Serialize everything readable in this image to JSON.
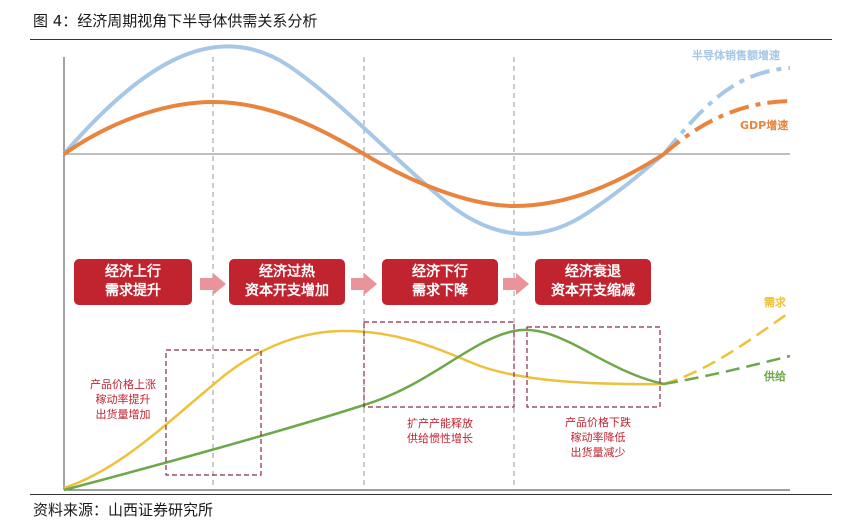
{
  "figure": {
    "title": "图 4：经济周期视角下半导体供需关系分析",
    "source": "资料来源：山西证券研究所"
  },
  "series_labels": {
    "semi_sales": "半导体销售额增速",
    "gdp": "GDP增速",
    "demand": "需求",
    "supply": "供给"
  },
  "stages": [
    {
      "line1": "经济上行",
      "line2": "需求提升"
    },
    {
      "line1": "经济过热",
      "line2": "资本开支增加"
    },
    {
      "line1": "经济下行",
      "line2": "需求下降"
    },
    {
      "line1": "经济衰退",
      "line2": "资本开支缩减"
    }
  ],
  "notes": [
    {
      "lines": [
        "产品价格上涨",
        "稼动率提升",
        "出货量增加"
      ]
    },
    {
      "lines": [
        "扩产产能释放",
        "供给惯性增长"
      ]
    },
    {
      "lines": [
        "产品价格下跌",
        "稼动率降低",
        "出货量减少"
      ]
    }
  ],
  "colors": {
    "semi_sales": "#a6c8e6",
    "gdp": "#e8843e",
    "demand": "#ecc23c",
    "supply": "#6ea84b",
    "stage_box": "#c1232f",
    "arrow": "#e8949a",
    "note_text": "#c1232f",
    "note_border": "#8c2a4b",
    "divider": "#999999"
  }
}
